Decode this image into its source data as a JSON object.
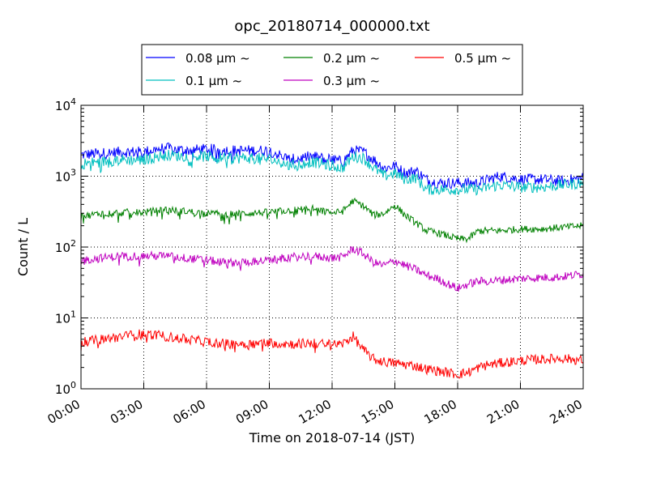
{
  "chart_data": {
    "type": "line",
    "title": "opc_20180714_000000.txt",
    "xlabel": "Time on 2018-07-14 (JST)",
    "ylabel": "Count / L",
    "yscale": "log",
    "ylim": [
      1,
      10000
    ],
    "xlim": [
      "00:00",
      "24:00"
    ],
    "x_tick_labels": [
      "00:00",
      "03:00",
      "06:00",
      "09:00",
      "12:00",
      "15:00",
      "18:00",
      "21:00",
      "24:00"
    ],
    "y_tick_labels": [
      {
        "base": "10",
        "exp": "0"
      },
      {
        "base": "10",
        "exp": "1"
      },
      {
        "base": "10",
        "exp": "2"
      },
      {
        "base": "10",
        "exp": "3"
      },
      {
        "base": "10",
        "exp": "4"
      }
    ],
    "grid": true,
    "legend_position": "top",
    "x": [
      "00:00",
      "01:00",
      "02:00",
      "03:00",
      "04:00",
      "05:00",
      "06:00",
      "07:00",
      "08:00",
      "09:00",
      "10:00",
      "11:00",
      "12:00",
      "12:30",
      "13:00",
      "13:30",
      "14:00",
      "14:30",
      "15:00",
      "15:30",
      "16:00",
      "16:30",
      "17:00",
      "18:00",
      "18:30",
      "19:00",
      "19:30",
      "20:00",
      "21:00",
      "22:00",
      "23:00",
      "24:00"
    ],
    "series": [
      {
        "name": "0.08 μm ~",
        "color": "#0000ff",
        "values": [
          2000,
          2100,
          2200,
          2200,
          2500,
          2300,
          2400,
          2300,
          2300,
          2300,
          1700,
          1900,
          1700,
          1600,
          2300,
          2200,
          1700,
          1300,
          1400,
          1100,
          1200,
          900,
          800,
          800,
          800,
          800,
          900,
          1000,
          900,
          900,
          850,
          950
        ]
      },
      {
        "name": "0.1 μm ~",
        "color": "#00bfbf",
        "values": [
          1500,
          1600,
          1700,
          1700,
          2000,
          1900,
          1900,
          1800,
          1800,
          1750,
          1400,
          1600,
          1400,
          1300,
          1900,
          1800,
          1300,
          1000,
          1100,
          900,
          950,
          650,
          650,
          650,
          650,
          650,
          700,
          750,
          700,
          700,
          750,
          800
        ]
      },
      {
        "name": "0.2 μm ~",
        "color": "#008000",
        "values": [
          270,
          300,
          310,
          310,
          340,
          320,
          300,
          290,
          300,
          310,
          330,
          350,
          300,
          320,
          450,
          380,
          280,
          300,
          390,
          280,
          220,
          170,
          160,
          130,
          130,
          170,
          170,
          170,
          180,
          180,
          190,
          200
        ]
      },
      {
        "name": "0.3 μm ~",
        "color": "#bf00bf",
        "values": [
          65,
          70,
          75,
          75,
          75,
          70,
          65,
          60,
          62,
          65,
          72,
          75,
          70,
          72,
          95,
          80,
          60,
          55,
          65,
          55,
          48,
          40,
          36,
          26,
          30,
          33,
          33,
          34,
          36,
          37,
          38,
          42
        ]
      },
      {
        "name": "0.5 μm ~",
        "color": "#ff0000",
        "values": [
          4.5,
          5,
          5.5,
          6,
          5.5,
          5,
          4.6,
          4.3,
          4.3,
          4.5,
          4.3,
          4.4,
          4.2,
          4.3,
          5.5,
          3.5,
          2.6,
          2.4,
          2.3,
          2.2,
          2.1,
          1.9,
          1.8,
          1.6,
          1.7,
          2.0,
          2.2,
          2.3,
          2.5,
          2.6,
          2.7,
          2.5
        ]
      }
    ]
  }
}
